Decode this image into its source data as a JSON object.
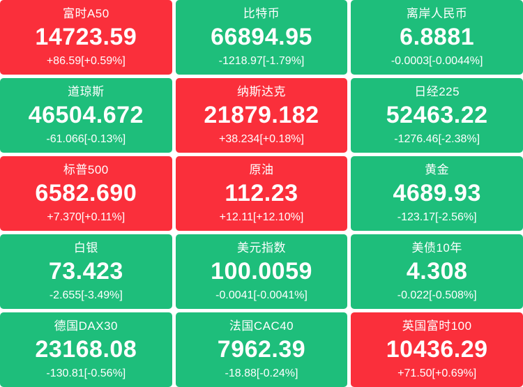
{
  "colors": {
    "up": "#fa2f3b",
    "down": "#1ebe7b",
    "text": "#ffffff",
    "background": "#ffffff"
  },
  "tiles": [
    {
      "name": "富时A50",
      "value": "14723.59",
      "change": "+86.59[+0.59%]",
      "direction": "up"
    },
    {
      "name": "比特币",
      "value": "66894.95",
      "change": "-1218.97[-1.79%]",
      "direction": "down"
    },
    {
      "name": "离岸人民币",
      "value": "6.8881",
      "change": "-0.0003[-0.0044%]",
      "direction": "down"
    },
    {
      "name": "道琼斯",
      "value": "46504.672",
      "change": "-61.066[-0.13%]",
      "direction": "down"
    },
    {
      "name": "纳斯达克",
      "value": "21879.182",
      "change": "+38.234[+0.18%]",
      "direction": "up"
    },
    {
      "name": "日经225",
      "value": "52463.22",
      "change": "-1276.46[-2.38%]",
      "direction": "down"
    },
    {
      "name": "标普500",
      "value": "6582.690",
      "change": "+7.370[+0.11%]",
      "direction": "up"
    },
    {
      "name": "原油",
      "value": "112.23",
      "change": "+12.11[+12.10%]",
      "direction": "up"
    },
    {
      "name": "黄金",
      "value": "4689.93",
      "change": "-123.17[-2.56%]",
      "direction": "down"
    },
    {
      "name": "白银",
      "value": "73.423",
      "change": "-2.655[-3.49%]",
      "direction": "down"
    },
    {
      "name": "美元指数",
      "value": "100.0059",
      "change": "-0.0041[-0.0041%]",
      "direction": "down"
    },
    {
      "name": "美债10年",
      "value": "4.308",
      "change": "-0.022[-0.508%]",
      "direction": "down"
    },
    {
      "name": "德国DAX30",
      "value": "23168.08",
      "change": "-130.81[-0.56%]",
      "direction": "down"
    },
    {
      "name": "法国CAC40",
      "value": "7962.39",
      "change": "-18.88[-0.24%]",
      "direction": "down"
    },
    {
      "name": "英国富时100",
      "value": "10436.29",
      "change": "+71.50[+0.69%]",
      "direction": "up"
    }
  ]
}
